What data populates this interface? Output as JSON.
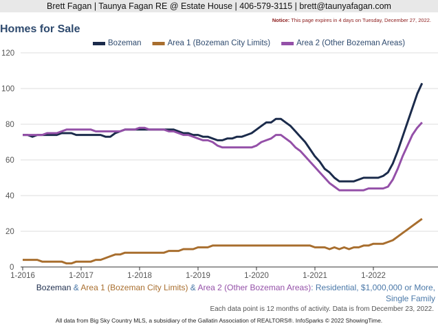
{
  "header": "Brett Fagan | Taunya Fagan RE @ Estate House | 406-579-3115 | brett@taunyafagan.com",
  "notice_label": "Notice:",
  "notice_text": "This page expires in 4 days on Tuesday, December 27, 2022.",
  "chart_data": {
    "type": "line",
    "title": "Homes for Sale",
    "x_start": "1-2016",
    "frequency": "monthly",
    "xticks": [
      "1-2016",
      "1-2017",
      "1-2018",
      "1-2019",
      "1-2020",
      "1-2021",
      "1-2022"
    ],
    "yticks": [
      0,
      20,
      40,
      60,
      80,
      100,
      120
    ],
    "ylim": [
      0,
      120
    ],
    "legend_position": "top",
    "series": [
      {
        "name": "Bozeman",
        "color": "#1b2b4b",
        "values": [
          74,
          74,
          73,
          74,
          74,
          74,
          74,
          74,
          75,
          75,
          75,
          74,
          74,
          74,
          74,
          74,
          74,
          73,
          73,
          75,
          76,
          77,
          77,
          77,
          77,
          77,
          77,
          77,
          77,
          77,
          77,
          77,
          76,
          75,
          75,
          74,
          74,
          73,
          73,
          72,
          71,
          71,
          72,
          72,
          73,
          73,
          74,
          75,
          77,
          79,
          81,
          81,
          83,
          83,
          81,
          79,
          76,
          73,
          70,
          66,
          62,
          59,
          55,
          53,
          50,
          48,
          48,
          48,
          48,
          49,
          50,
          50,
          50,
          50,
          51,
          53,
          58,
          65,
          73,
          81,
          89,
          97,
          103
        ]
      },
      {
        "name": "Area 1 (Bozeman City Limits)",
        "color": "#a86e2e",
        "values": [
          4,
          4,
          4,
          4,
          3,
          3,
          3,
          3,
          3,
          2,
          2,
          3,
          3,
          3,
          3,
          4,
          4,
          5,
          6,
          7,
          7,
          8,
          8,
          8,
          8,
          8,
          8,
          8,
          8,
          8,
          9,
          9,
          9,
          10,
          10,
          10,
          11,
          11,
          11,
          12,
          12,
          12,
          12,
          12,
          12,
          12,
          12,
          12,
          12,
          12,
          12,
          12,
          12,
          12,
          12,
          12,
          12,
          12,
          12,
          12,
          11,
          11,
          11,
          10,
          11,
          10,
          11,
          10,
          11,
          11,
          12,
          12,
          13,
          13,
          13,
          14,
          15,
          17,
          19,
          21,
          23,
          25,
          27
        ]
      },
      {
        "name": "Area 2 (Other Bozeman Areas)",
        "color": "#9450a8",
        "values": [
          74,
          74,
          74,
          74,
          74,
          75,
          75,
          75,
          76,
          77,
          77,
          77,
          77,
          77,
          77,
          76,
          76,
          76,
          76,
          76,
          76,
          77,
          77,
          77,
          78,
          78,
          77,
          77,
          77,
          77,
          76,
          76,
          75,
          74,
          74,
          73,
          72,
          71,
          71,
          70,
          68,
          67,
          67,
          67,
          67,
          67,
          67,
          67,
          68,
          70,
          71,
          72,
          74,
          74,
          72,
          70,
          67,
          65,
          62,
          59,
          56,
          53,
          50,
          47,
          45,
          43,
          43,
          43,
          43,
          43,
          43,
          44,
          44,
          44,
          44,
          45,
          49,
          55,
          62,
          68,
          74,
          78,
          81
        ]
      }
    ]
  },
  "subtitle": {
    "p1": "Bozeman",
    "amp": " & ",
    "p2": "Area 1 (Bozeman City Limits)",
    "p3": "Area 2 (Other Bozeman Areas)",
    "p4": ": Residential, $1,000,000 or More, Single Family"
  },
  "footnote": "Each data point is 12 months of activity. Data is from December 23, 2022.",
  "source": "All data from Big Sky Country MLS, a subsidiary of the Gallatin Association of REALTORS®. InfoSparks © 2022 ShowingTime."
}
